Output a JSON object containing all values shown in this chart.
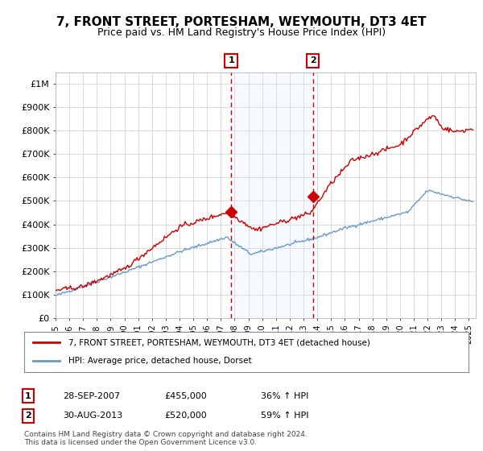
{
  "title": "7, FRONT STREET, PORTESHAM, WEYMOUTH, DT3 4ET",
  "subtitle": "Price paid vs. HM Land Registry's House Price Index (HPI)",
  "title_fontsize": 11,
  "subtitle_fontsize": 9,
  "background_color": "#ffffff",
  "plot_bg_color": "#ffffff",
  "grid_color": "#cccccc",
  "red_line_color": "#cc0000",
  "blue_line_color": "#6699cc",
  "shade_color": "#ddeeff",
  "dashed_line_color": "#cc0000",
  "ylim": [
    0,
    1050000
  ],
  "yticks": [
    0,
    100000,
    200000,
    300000,
    400000,
    500000,
    600000,
    700000,
    800000,
    900000,
    1000000
  ],
  "ytick_labels": [
    "£0",
    "£100K",
    "£200K",
    "£300K",
    "£400K",
    "£500K",
    "£600K",
    "£700K",
    "£800K",
    "£900K",
    "£1M"
  ],
  "sale1_date": 2007.75,
  "sale1_price": 455000,
  "sale1_label": "1",
  "sale2_date": 2013.67,
  "sale2_price": 520000,
  "sale2_label": "2",
  "shade_x1": 2007.75,
  "shade_x2": 2013.67,
  "legend1_text": "7, FRONT STREET, PORTESHAM, WEYMOUTH, DT3 4ET (detached house)",
  "legend2_text": "HPI: Average price, detached house, Dorset",
  "table_rows": [
    {
      "num": "1",
      "date": "28-SEP-2007",
      "price": "£455,000",
      "hpi": "36% ↑ HPI"
    },
    {
      "num": "2",
      "date": "30-AUG-2013",
      "price": "£520,000",
      "hpi": "59% ↑ HPI"
    }
  ],
  "footnote1": "Contains HM Land Registry data © Crown copyright and database right 2024.",
  "footnote2": "This data is licensed under the Open Government Licence v3.0.",
  "xmin": 1995,
  "xmax": 2025.5
}
